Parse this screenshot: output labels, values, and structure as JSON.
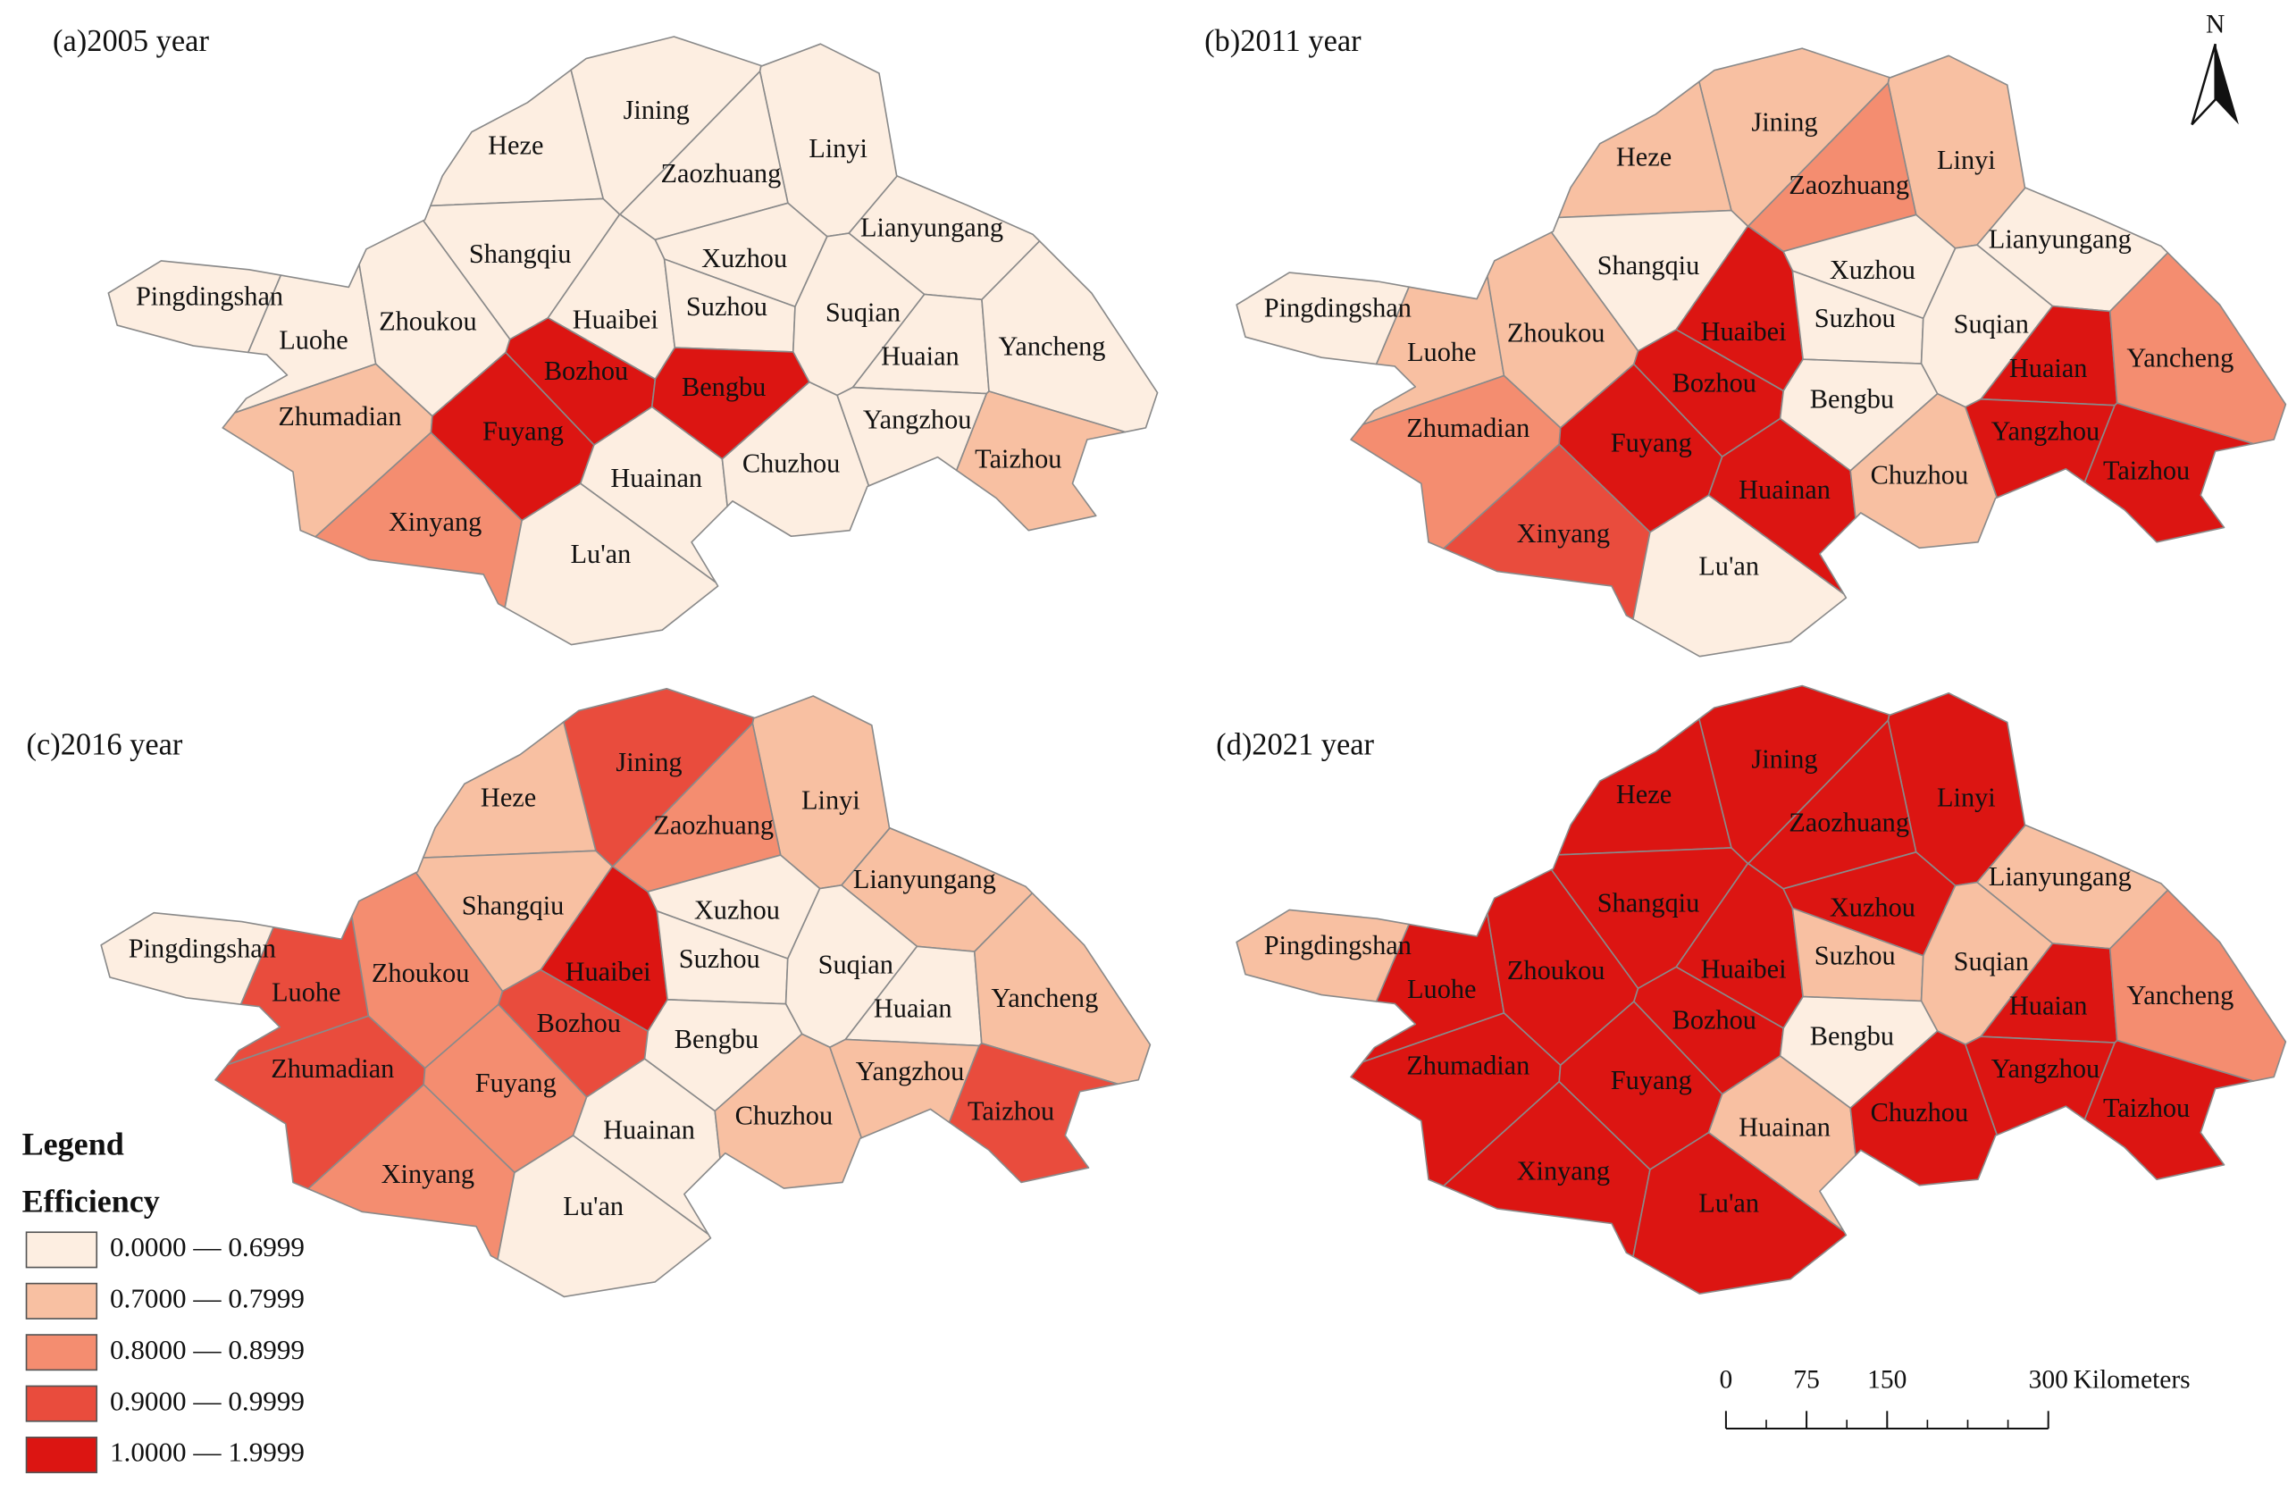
{
  "cities": [
    "Jining",
    "Heze",
    "Linyi",
    "Zaozhuang",
    "Lianyungang",
    "Shangqiu",
    "Xuzhou",
    "Pingdingshan",
    "Luohe",
    "Zhoukou",
    "Huaibei",
    "Suzhou",
    "Suqian",
    "Huaian",
    "Yancheng",
    "Bozhou",
    "Bengbu",
    "Zhumadian",
    "Fuyang",
    "Huainan",
    "Chuzhou",
    "Yangzhou",
    "Taizhou",
    "Xinyang",
    "Lu'an"
  ],
  "panels": [
    {
      "title": "(a)2005 year",
      "colors": [
        "#fdeee1",
        "#fdeee1",
        "#fdeee1",
        "#fdeee1",
        "#fdeee1",
        "#fdeee1",
        "#fdeee1",
        "#fdeee1",
        "#fdeee1",
        "#fdeee1",
        "#fdeee1",
        "#fdeee1",
        "#fdeee1",
        "#fdeee1",
        "#fdeee1",
        "#dc1512",
        "#dc1512",
        "#f8c0a2",
        "#dc1512",
        "#fdeee1",
        "#fdeee1",
        "#fdeee1",
        "#f8c0a2",
        "#f48d70",
        "#fdeee1"
      ]
    },
    {
      "title": "(b)2011 year",
      "colors": [
        "#f8c0a2",
        "#f8c0a2",
        "#f8c0a2",
        "#f48d70",
        "#fdeee1",
        "#fdeee1",
        "#fdeee1",
        "#fdeee1",
        "#f8c0a2",
        "#f8c0a2",
        "#dc1512",
        "#fdeee1",
        "#fdeee1",
        "#dc1512",
        "#f48d70",
        "#dc1512",
        "#fdeee1",
        "#f48d70",
        "#dc1512",
        "#dc1512",
        "#f8c0a2",
        "#dc1512",
        "#dc1512",
        "#e94c3d",
        "#fdeee1"
      ]
    },
    {
      "title": "(c)2016 year",
      "colors": [
        "#e94c3d",
        "#f8c0a2",
        "#f8c0a2",
        "#f48d70",
        "#f8c0a2",
        "#f8c0a2",
        "#fdeee1",
        "#fdeee1",
        "#e94c3d",
        "#f48d70",
        "#dc1512",
        "#fdeee1",
        "#fdeee1",
        "#fdeee1",
        "#f8c0a2",
        "#e94c3d",
        "#fdeee1",
        "#e94c3d",
        "#f48d70",
        "#fdeee1",
        "#f8c0a2",
        "#f8c0a2",
        "#e94c3d",
        "#f48d70",
        "#fdeee1"
      ]
    },
    {
      "title": "(d)2021 year",
      "colors": [
        "#dc1512",
        "#dc1512",
        "#dc1512",
        "#dc1512",
        "#f8c0a2",
        "#dc1512",
        "#dc1512",
        "#f8c0a2",
        "#dc1512",
        "#dc1512",
        "#dc1512",
        "#f8c0a2",
        "#f8c0a2",
        "#dc1512",
        "#f48d70",
        "#dc1512",
        "#fdeee1",
        "#dc1512",
        "#dc1512",
        "#f8c0a2",
        "#dc1512",
        "#dc1512",
        "#dc1512",
        "#dc1512",
        "#dc1512"
      ]
    }
  ],
  "legend": {
    "title": "Legend",
    "subtitle": "Efficiency",
    "items": [
      {
        "label": "0.0000 — 0.6999",
        "color": "#fdeee1"
      },
      {
        "label": "0.7000 — 0.7999",
        "color": "#f8c0a2"
      },
      {
        "label": "0.8000 — 0.8999",
        "color": "#f48d70"
      },
      {
        "label": "0.9000 — 0.9999",
        "color": "#e94c3d"
      },
      {
        "label": "1.0000 — 1.9999",
        "color": "#dc1512"
      }
    ]
  },
  "scale_bar": {
    "ticks": [
      0,
      75,
      150,
      300
    ],
    "unit": "Kilometers"
  },
  "north": "N"
}
